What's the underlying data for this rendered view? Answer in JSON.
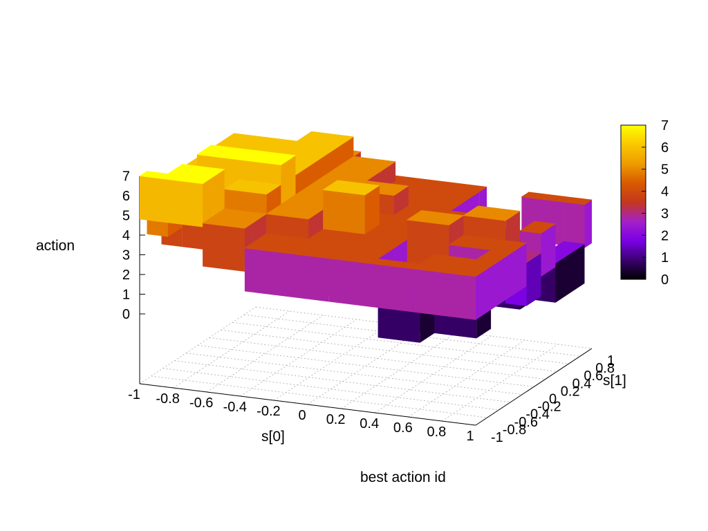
{
  "chart_data": {
    "type": "surface3d",
    "title": "best action id",
    "xlabel": "s[0]",
    "ylabel": "s[1]",
    "zlabel": "action",
    "xlim": [
      -1,
      1
    ],
    "ylim": [
      -1,
      1
    ],
    "zlim": [
      0,
      7
    ],
    "grid": true,
    "x_ticks": [
      "-1",
      "-0.8",
      "-0.6",
      "-0.4",
      "-0.2",
      "0",
      "0.2",
      "0.4",
      "0.6",
      "0.8",
      "1"
    ],
    "y_ticks": [
      "-1",
      "-0.8",
      "-0.6",
      "-0.4",
      "-0.2",
      "0",
      "0.2",
      "0.4",
      "0.6",
      "0.8",
      "1"
    ],
    "z_ticks": [
      "0",
      "1",
      "2",
      "3",
      "4",
      "5",
      "6",
      "7"
    ],
    "colorbar": {
      "ticks": [
        "0",
        "1",
        "2",
        "3",
        "4",
        "5",
        "6",
        "7"
      ],
      "range": [
        0,
        7
      ],
      "palette": [
        "#000000",
        "#3a0070",
        "#7a00e6",
        "#a420c8",
        "#c4381e",
        "#d85a00",
        "#ee9c00",
        "#f9c800",
        "#ffff00"
      ]
    },
    "x": [
      -1,
      -0.75,
      -0.5,
      -0.25,
      0,
      0.25,
      0.5,
      0.75,
      1
    ],
    "y": [
      -1,
      -0.75,
      -0.5,
      -0.25,
      0,
      0.25,
      0.5,
      0.75,
      1
    ],
    "z": [
      [
        7,
        7,
        5,
        4,
        4,
        4,
        4,
        4,
        4
      ],
      [
        6,
        7,
        5,
        4,
        4,
        4,
        2,
        4,
        4
      ],
      [
        5,
        5,
        6,
        5,
        4,
        4,
        2,
        2,
        4
      ],
      [
        6,
        7,
        7,
        5,
        6,
        4,
        5,
        4,
        4
      ],
      [
        6,
        6,
        6,
        5,
        4,
        4,
        4,
        5,
        3
      ],
      [
        6,
        6,
        6,
        5,
        5,
        4,
        4,
        2,
        4
      ],
      [
        6,
        6,
        6,
        5,
        4,
        4,
        2,
        2,
        2
      ],
      [
        5,
        5,
        6,
        5,
        4,
        4,
        2,
        0,
        2
      ],
      [
        5,
        5,
        5,
        4,
        4,
        4,
        2,
        4,
        4
      ]
    ]
  }
}
